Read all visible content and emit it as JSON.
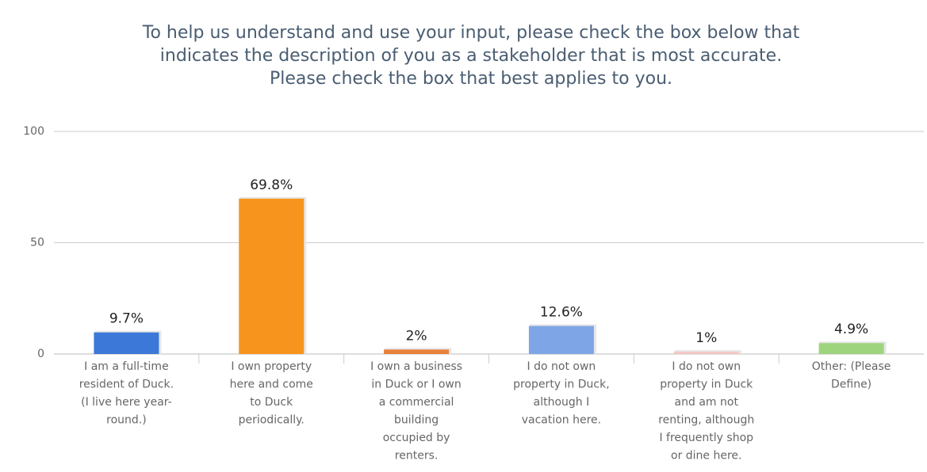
{
  "chart_data": {
    "type": "bar",
    "title": [
      "To help us understand and use your input, please check the box below that",
      "indicates the description of you as a stakeholder that is most accurate.",
      "Please check the box that best applies to you."
    ],
    "categories": [
      [
        "I am a full-time",
        "resident of Duck.",
        "(I live here year-",
        "round.)"
      ],
      [
        "I own property",
        "here and come",
        "to Duck",
        "periodically."
      ],
      [
        "I own a business",
        "in Duck or I own",
        "a commercial",
        "building",
        "occupied by",
        "renters."
      ],
      [
        "I do not own",
        "property in Duck,",
        "although I",
        "vacation here."
      ],
      [
        "I do not own",
        "property in Duck",
        "and am not",
        "renting, although",
        "I frequently shop",
        "or dine here."
      ],
      [
        "Other: (Please",
        "Define)"
      ]
    ],
    "values": [
      9.7,
      69.8,
      2,
      12.6,
      1,
      4.9
    ],
    "value_labels": [
      "9.7%",
      "69.8%",
      "2%",
      "12.6%",
      "1%",
      "4.9%"
    ],
    "colors": [
      "#3c78d8",
      "#f7941d",
      "#e8803a",
      "#7ea6e6",
      "#f4c7c3",
      "#9fd47f"
    ],
    "ylim": [
      0,
      100
    ],
    "yticks": [
      0,
      50,
      100
    ],
    "grid": true
  }
}
